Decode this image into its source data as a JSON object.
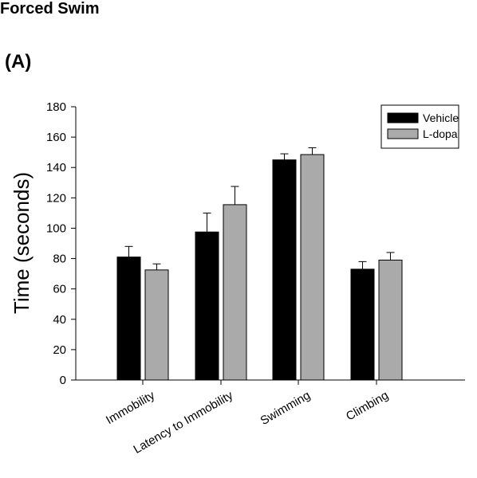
{
  "header": {
    "title": "Forced Swim",
    "panel_label": "(A)"
  },
  "chart_data": {
    "type": "bar",
    "title": "",
    "xlabel": "",
    "ylabel": "Time (seconds)",
    "ylim": [
      0,
      180
    ],
    "yticks": [
      0,
      20,
      40,
      60,
      80,
      100,
      120,
      140,
      160,
      180
    ],
    "categories": [
      "Immobility",
      "Latency to Immobility",
      "Swimming",
      "Climbing"
    ],
    "series": [
      {
        "name": "Vehicle",
        "color": "#000000",
        "values": [
          81,
          97.5,
          145,
          73
        ],
        "errors": [
          7,
          12.5,
          4,
          5
        ]
      },
      {
        "name": "L-dopa",
        "color": "#aaaaaa",
        "values": [
          72.5,
          115.5,
          148.5,
          79
        ],
        "errors": [
          4,
          12,
          4.5,
          5
        ]
      }
    ],
    "legend_position": "top-right",
    "grid": false
  }
}
